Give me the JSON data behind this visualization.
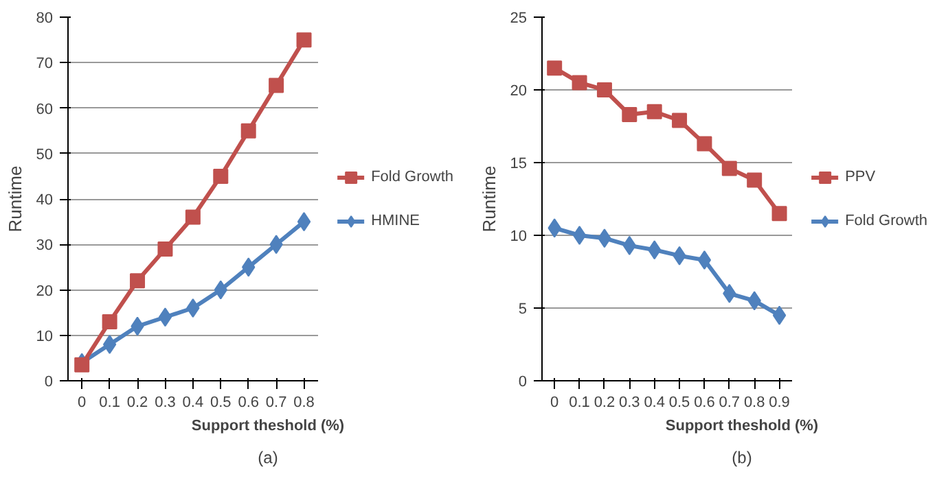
{
  "chart_data": [
    {
      "type": "line",
      "categories": [
        "0",
        "0.1",
        "0.2",
        "0.3",
        "0.4",
        "0.5",
        "0.6",
        "0.7",
        "0.8"
      ],
      "xlabel": "Support theshold (%)",
      "ylabel": "Runtime",
      "ylim": [
        0,
        80
      ],
      "yticks": [
        0,
        10,
        20,
        30,
        40,
        50,
        60,
        70,
        80
      ],
      "grid": "y",
      "legend": "right",
      "annotations": [
        "(a)"
      ],
      "series": [
        {
          "name": "Fold Growth",
          "color": "#c0504d",
          "marker": "square",
          "values": [
            3.5,
            13,
            22,
            29,
            36,
            45,
            55,
            65,
            75
          ]
        },
        {
          "name": "HMINE",
          "color": "#4f81bd",
          "marker": "diamond",
          "values": [
            4,
            8,
            12,
            14,
            16,
            20,
            25,
            30,
            35
          ]
        }
      ]
    },
    {
      "type": "line",
      "categories": [
        "0",
        "0.1",
        "0.2",
        "0.3",
        "0.4",
        "0.5",
        "0.6",
        "0.7",
        "0.8",
        "0.9"
      ],
      "xlabel": "Support theshold (%)",
      "ylabel": "Runtime",
      "ylim": [
        0,
        25
      ],
      "yticks": [
        0,
        5,
        10,
        15,
        20,
        25
      ],
      "grid": "y",
      "legend": "right",
      "annotations": [
        "(b)"
      ],
      "series": [
        {
          "name": "PPV",
          "color": "#c0504d",
          "marker": "square",
          "values": [
            21.5,
            20.5,
            20,
            18.3,
            18.5,
            17.9,
            16.3,
            14.6,
            13.8,
            11.5
          ]
        },
        {
          "name": "Fold Growth",
          "color": "#4f81bd",
          "marker": "diamond",
          "values": [
            10.5,
            10,
            9.8,
            9.3,
            9,
            8.6,
            8.3,
            6,
            5.5,
            4.5
          ]
        }
      ]
    }
  ]
}
